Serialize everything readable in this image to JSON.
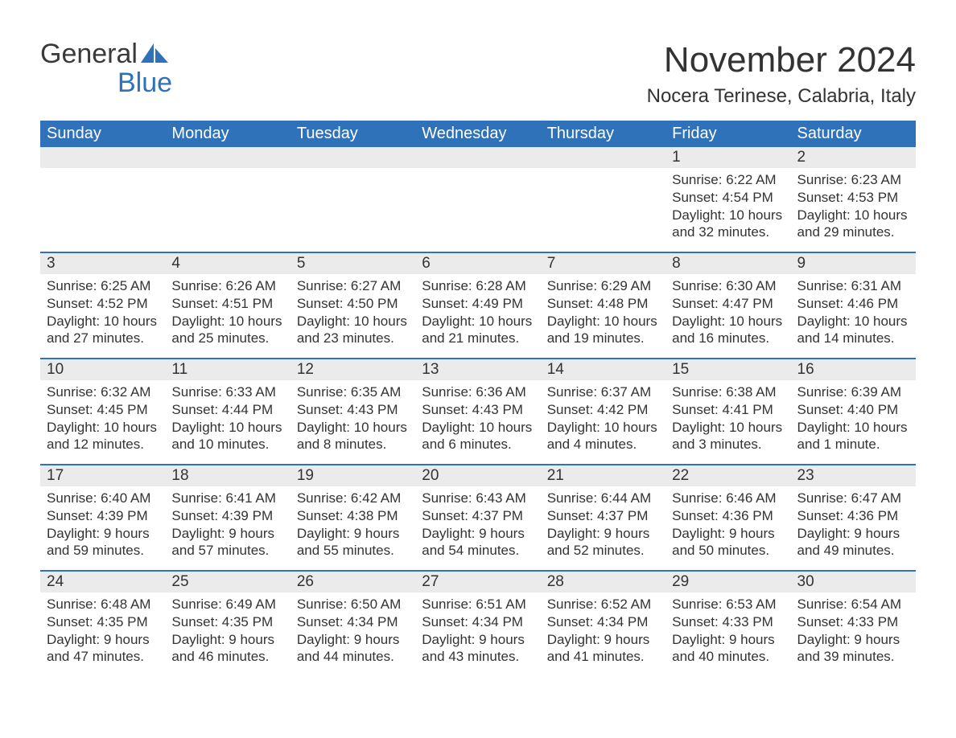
{
  "logo": {
    "word1": "General",
    "word2": "Blue",
    "color_text": "#3a3a3a",
    "color_accent": "#2f72b9"
  },
  "header": {
    "month_title": "November 2024",
    "location": "Nocera Terinese, Calabria, Italy"
  },
  "colors": {
    "header_bg": "#2f72b9",
    "header_text": "#ffffff",
    "daynum_bg": "#ebebeb",
    "body_text": "#333333",
    "row_border": "#2f72b9",
    "page_bg": "#ffffff"
  },
  "day_labels": [
    "Sunday",
    "Monday",
    "Tuesday",
    "Wednesday",
    "Thursday",
    "Friday",
    "Saturday"
  ],
  "weeks": [
    [
      {
        "blank": true
      },
      {
        "blank": true
      },
      {
        "blank": true
      },
      {
        "blank": true
      },
      {
        "blank": true
      },
      {
        "n": "1",
        "sunrise": "Sunrise: 6:22 AM",
        "sunset": "Sunset: 4:54 PM",
        "dl1": "Daylight: 10 hours",
        "dl2": "and 32 minutes."
      },
      {
        "n": "2",
        "sunrise": "Sunrise: 6:23 AM",
        "sunset": "Sunset: 4:53 PM",
        "dl1": "Daylight: 10 hours",
        "dl2": "and 29 minutes."
      }
    ],
    [
      {
        "n": "3",
        "sunrise": "Sunrise: 6:25 AM",
        "sunset": "Sunset: 4:52 PM",
        "dl1": "Daylight: 10 hours",
        "dl2": "and 27 minutes."
      },
      {
        "n": "4",
        "sunrise": "Sunrise: 6:26 AM",
        "sunset": "Sunset: 4:51 PM",
        "dl1": "Daylight: 10 hours",
        "dl2": "and 25 minutes."
      },
      {
        "n": "5",
        "sunrise": "Sunrise: 6:27 AM",
        "sunset": "Sunset: 4:50 PM",
        "dl1": "Daylight: 10 hours",
        "dl2": "and 23 minutes."
      },
      {
        "n": "6",
        "sunrise": "Sunrise: 6:28 AM",
        "sunset": "Sunset: 4:49 PM",
        "dl1": "Daylight: 10 hours",
        "dl2": "and 21 minutes."
      },
      {
        "n": "7",
        "sunrise": "Sunrise: 6:29 AM",
        "sunset": "Sunset: 4:48 PM",
        "dl1": "Daylight: 10 hours",
        "dl2": "and 19 minutes."
      },
      {
        "n": "8",
        "sunrise": "Sunrise: 6:30 AM",
        "sunset": "Sunset: 4:47 PM",
        "dl1": "Daylight: 10 hours",
        "dl2": "and 16 minutes."
      },
      {
        "n": "9",
        "sunrise": "Sunrise: 6:31 AM",
        "sunset": "Sunset: 4:46 PM",
        "dl1": "Daylight: 10 hours",
        "dl2": "and 14 minutes."
      }
    ],
    [
      {
        "n": "10",
        "sunrise": "Sunrise: 6:32 AM",
        "sunset": "Sunset: 4:45 PM",
        "dl1": "Daylight: 10 hours",
        "dl2": "and 12 minutes."
      },
      {
        "n": "11",
        "sunrise": "Sunrise: 6:33 AM",
        "sunset": "Sunset: 4:44 PM",
        "dl1": "Daylight: 10 hours",
        "dl2": "and 10 minutes."
      },
      {
        "n": "12",
        "sunrise": "Sunrise: 6:35 AM",
        "sunset": "Sunset: 4:43 PM",
        "dl1": "Daylight: 10 hours",
        "dl2": "and 8 minutes."
      },
      {
        "n": "13",
        "sunrise": "Sunrise: 6:36 AM",
        "sunset": "Sunset: 4:43 PM",
        "dl1": "Daylight: 10 hours",
        "dl2": "and 6 minutes."
      },
      {
        "n": "14",
        "sunrise": "Sunrise: 6:37 AM",
        "sunset": "Sunset: 4:42 PM",
        "dl1": "Daylight: 10 hours",
        "dl2": "and 4 minutes."
      },
      {
        "n": "15",
        "sunrise": "Sunrise: 6:38 AM",
        "sunset": "Sunset: 4:41 PM",
        "dl1": "Daylight: 10 hours",
        "dl2": "and 3 minutes."
      },
      {
        "n": "16",
        "sunrise": "Sunrise: 6:39 AM",
        "sunset": "Sunset: 4:40 PM",
        "dl1": "Daylight: 10 hours",
        "dl2": "and 1 minute."
      }
    ],
    [
      {
        "n": "17",
        "sunrise": "Sunrise: 6:40 AM",
        "sunset": "Sunset: 4:39 PM",
        "dl1": "Daylight: 9 hours",
        "dl2": "and 59 minutes."
      },
      {
        "n": "18",
        "sunrise": "Sunrise: 6:41 AM",
        "sunset": "Sunset: 4:39 PM",
        "dl1": "Daylight: 9 hours",
        "dl2": "and 57 minutes."
      },
      {
        "n": "19",
        "sunrise": "Sunrise: 6:42 AM",
        "sunset": "Sunset: 4:38 PM",
        "dl1": "Daylight: 9 hours",
        "dl2": "and 55 minutes."
      },
      {
        "n": "20",
        "sunrise": "Sunrise: 6:43 AM",
        "sunset": "Sunset: 4:37 PM",
        "dl1": "Daylight: 9 hours",
        "dl2": "and 54 minutes."
      },
      {
        "n": "21",
        "sunrise": "Sunrise: 6:44 AM",
        "sunset": "Sunset: 4:37 PM",
        "dl1": "Daylight: 9 hours",
        "dl2": "and 52 minutes."
      },
      {
        "n": "22",
        "sunrise": "Sunrise: 6:46 AM",
        "sunset": "Sunset: 4:36 PM",
        "dl1": "Daylight: 9 hours",
        "dl2": "and 50 minutes."
      },
      {
        "n": "23",
        "sunrise": "Sunrise: 6:47 AM",
        "sunset": "Sunset: 4:36 PM",
        "dl1": "Daylight: 9 hours",
        "dl2": "and 49 minutes."
      }
    ],
    [
      {
        "n": "24",
        "sunrise": "Sunrise: 6:48 AM",
        "sunset": "Sunset: 4:35 PM",
        "dl1": "Daylight: 9 hours",
        "dl2": "and 47 minutes."
      },
      {
        "n": "25",
        "sunrise": "Sunrise: 6:49 AM",
        "sunset": "Sunset: 4:35 PM",
        "dl1": "Daylight: 9 hours",
        "dl2": "and 46 minutes."
      },
      {
        "n": "26",
        "sunrise": "Sunrise: 6:50 AM",
        "sunset": "Sunset: 4:34 PM",
        "dl1": "Daylight: 9 hours",
        "dl2": "and 44 minutes."
      },
      {
        "n": "27",
        "sunrise": "Sunrise: 6:51 AM",
        "sunset": "Sunset: 4:34 PM",
        "dl1": "Daylight: 9 hours",
        "dl2": "and 43 minutes."
      },
      {
        "n": "28",
        "sunrise": "Sunrise: 6:52 AM",
        "sunset": "Sunset: 4:34 PM",
        "dl1": "Daylight: 9 hours",
        "dl2": "and 41 minutes."
      },
      {
        "n": "29",
        "sunrise": "Sunrise: 6:53 AM",
        "sunset": "Sunset: 4:33 PM",
        "dl1": "Daylight: 9 hours",
        "dl2": "and 40 minutes."
      },
      {
        "n": "30",
        "sunrise": "Sunrise: 6:54 AM",
        "sunset": "Sunset: 4:33 PM",
        "dl1": "Daylight: 9 hours",
        "dl2": "and 39 minutes."
      }
    ]
  ]
}
